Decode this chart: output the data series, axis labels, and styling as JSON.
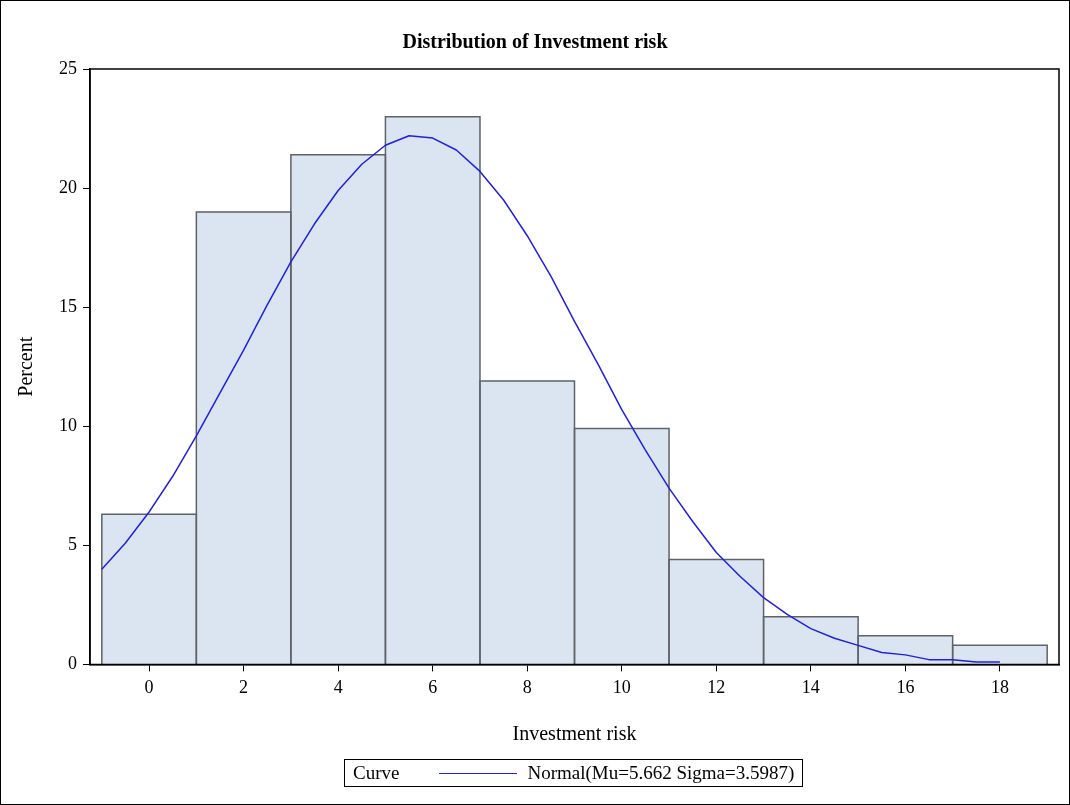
{
  "chart_data": {
    "type": "histogram",
    "title": "Distribution of Investment risk",
    "xlabel": "Investment risk",
    "ylabel": "Percent",
    "legend_title": "Curve",
    "legend": "bottom",
    "grid": false,
    "bins": [
      -1,
      1,
      3,
      5,
      7,
      9,
      11,
      13,
      15,
      17,
      19
    ],
    "values": [
      6.3,
      19.0,
      21.4,
      23.0,
      11.9,
      9.9,
      4.4,
      2.0,
      1.2,
      0.8
    ],
    "color": "#dbe5f1",
    "series": [
      {
        "type": "line",
        "name": "Normal(Mu=5.662 Sigma=3.5987)",
        "color": "#2020e0",
        "x": [
          -1,
          -0.5,
          0,
          0.5,
          1,
          1.5,
          2,
          2.5,
          3,
          3.5,
          4,
          4.5,
          5,
          5.5,
          6,
          6.5,
          7,
          7.5,
          8,
          8.5,
          9,
          9.5,
          10,
          10.5,
          11,
          11.5,
          12,
          12.5,
          13,
          13.5,
          14,
          14.5,
          15,
          15.5,
          16,
          16.5,
          17,
          17.5,
          18
        ],
        "values": [
          4.0,
          5.1,
          6.4,
          7.9,
          9.6,
          11.4,
          13.2,
          15.1,
          16.9,
          18.5,
          19.9,
          21.0,
          21.8,
          22.2,
          22.1,
          21.6,
          20.7,
          19.5,
          18.0,
          16.3,
          14.4,
          12.6,
          10.7,
          9.0,
          7.4,
          6.0,
          4.7,
          3.7,
          2.8,
          2.1,
          1.5,
          1.1,
          0.8,
          0.5,
          0.4,
          0.2,
          0.2,
          0.1,
          0.1
        ]
      }
    ],
    "xlim": [
      -1.25,
      19.25
    ],
    "xticks": [
      0,
      2,
      4,
      6,
      8,
      10,
      12,
      14,
      16,
      18
    ],
    "ylim": [
      0,
      25
    ],
    "yticks": [
      0,
      5,
      10,
      15,
      20,
      25
    ]
  }
}
